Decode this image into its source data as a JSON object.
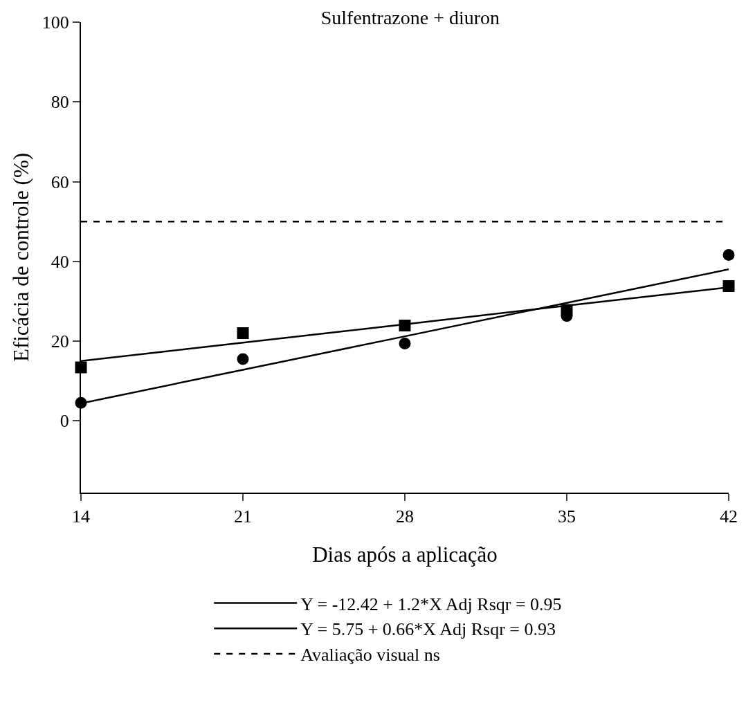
{
  "chart_data": {
    "type": "scatter",
    "title": "Sulfentrazone + diuron",
    "xlabel": "Dias após a aplicação",
    "ylabel": "Eficácia de controle (%)",
    "x": [
      14,
      21,
      28,
      35,
      42
    ],
    "series": [
      {
        "marker": "circle",
        "color": "#000000",
        "values": [
          4.5,
          15.5,
          19.4,
          26.3,
          41.6
        ]
      },
      {
        "type": "line",
        "name": "Y = -12.42 + 1.2*X Adj Rsqr = 0.95",
        "color": "#000000",
        "values": [
          4.4,
          12.8,
          21.2,
          29.6,
          38.0
        ],
        "line_style": "solid"
      },
      {
        "marker": "square",
        "color": "#000000",
        "values": [
          13.4,
          22.0,
          23.9,
          27.8,
          33.8
        ]
      },
      {
        "type": "line",
        "name": "Y = 5.75 + 0.66*X Adj Rsqr = 0.93",
        "color": "#000000",
        "values": [
          15.0,
          19.6,
          24.2,
          28.9,
          33.5
        ],
        "line_style": "solid"
      }
    ],
    "ref_lines": [
      {
        "axis": "y",
        "value": 50,
        "label": "Avaliação visual ns",
        "color": "#000000",
        "line_style": "dashed"
      }
    ],
    "xlim": [
      14,
      42
    ],
    "xticks": [
      14,
      21,
      28,
      35,
      42
    ],
    "ylim": [
      -18,
      100
    ],
    "yticks": [
      0,
      20,
      40,
      60,
      80,
      100
    ],
    "grid": false,
    "legend": "bottom"
  }
}
